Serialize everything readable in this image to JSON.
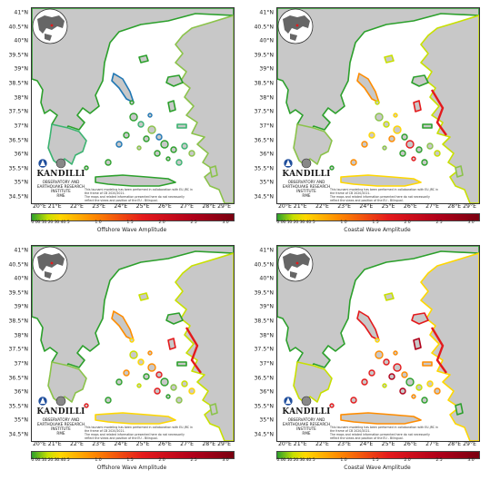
{
  "figure": {
    "latitude_labels": [
      "41°N",
      "40.5°N",
      "40°N",
      "39.5°N",
      "39°N",
      "38.5°N",
      "38°N",
      "37.5°N",
      "37°N",
      "36.5°N",
      "36°N",
      "35.5°N",
      "35°N",
      "34.5°N"
    ],
    "longitude_labels": [
      "20°E",
      "21°E",
      "22°E",
      "23°E",
      "24°E",
      "25°E",
      "26°E",
      "27°E",
      "28°E",
      "29°E"
    ],
    "colorbar_ticks": [
      "0.0",
      "0.1",
      "0.2",
      "0.3",
      "0.4",
      "0.5",
      "1.0",
      "1.5",
      "2.0",
      "2.5",
      "3.0"
    ],
    "logo_name": "KANDILLI",
    "logo_sub": "OBSERVATORY AND EARTHQUAKE RESEARCH INSTITUTE",
    "logo_dept": "RME",
    "disclaimer_1": "This tsunami modeling has been performed in collaboration with EU-JRC in the frame of CB 2020/2021.",
    "disclaimer_2": "The maps and related information presented here do not necessarily reflect the views and position of the EU - Bilingual.",
    "colors": {
      "land": "#c8c8c8",
      "sea": "#ffffff",
      "low": "#2ca02c",
      "mid": "#ffd700",
      "high": "#e41a1c"
    }
  },
  "panels": [
    {
      "colorbar_title": "Offshore Wave Amplitude",
      "intensity": "low"
    },
    {
      "colorbar_title": "Coastal Wave Amplitude",
      "intensity": "medium"
    },
    {
      "colorbar_title": "Offshore Wave Amplitude",
      "intensity": "medium"
    },
    {
      "colorbar_title": "Coastal Wave Amplitude",
      "intensity": "high"
    }
  ]
}
